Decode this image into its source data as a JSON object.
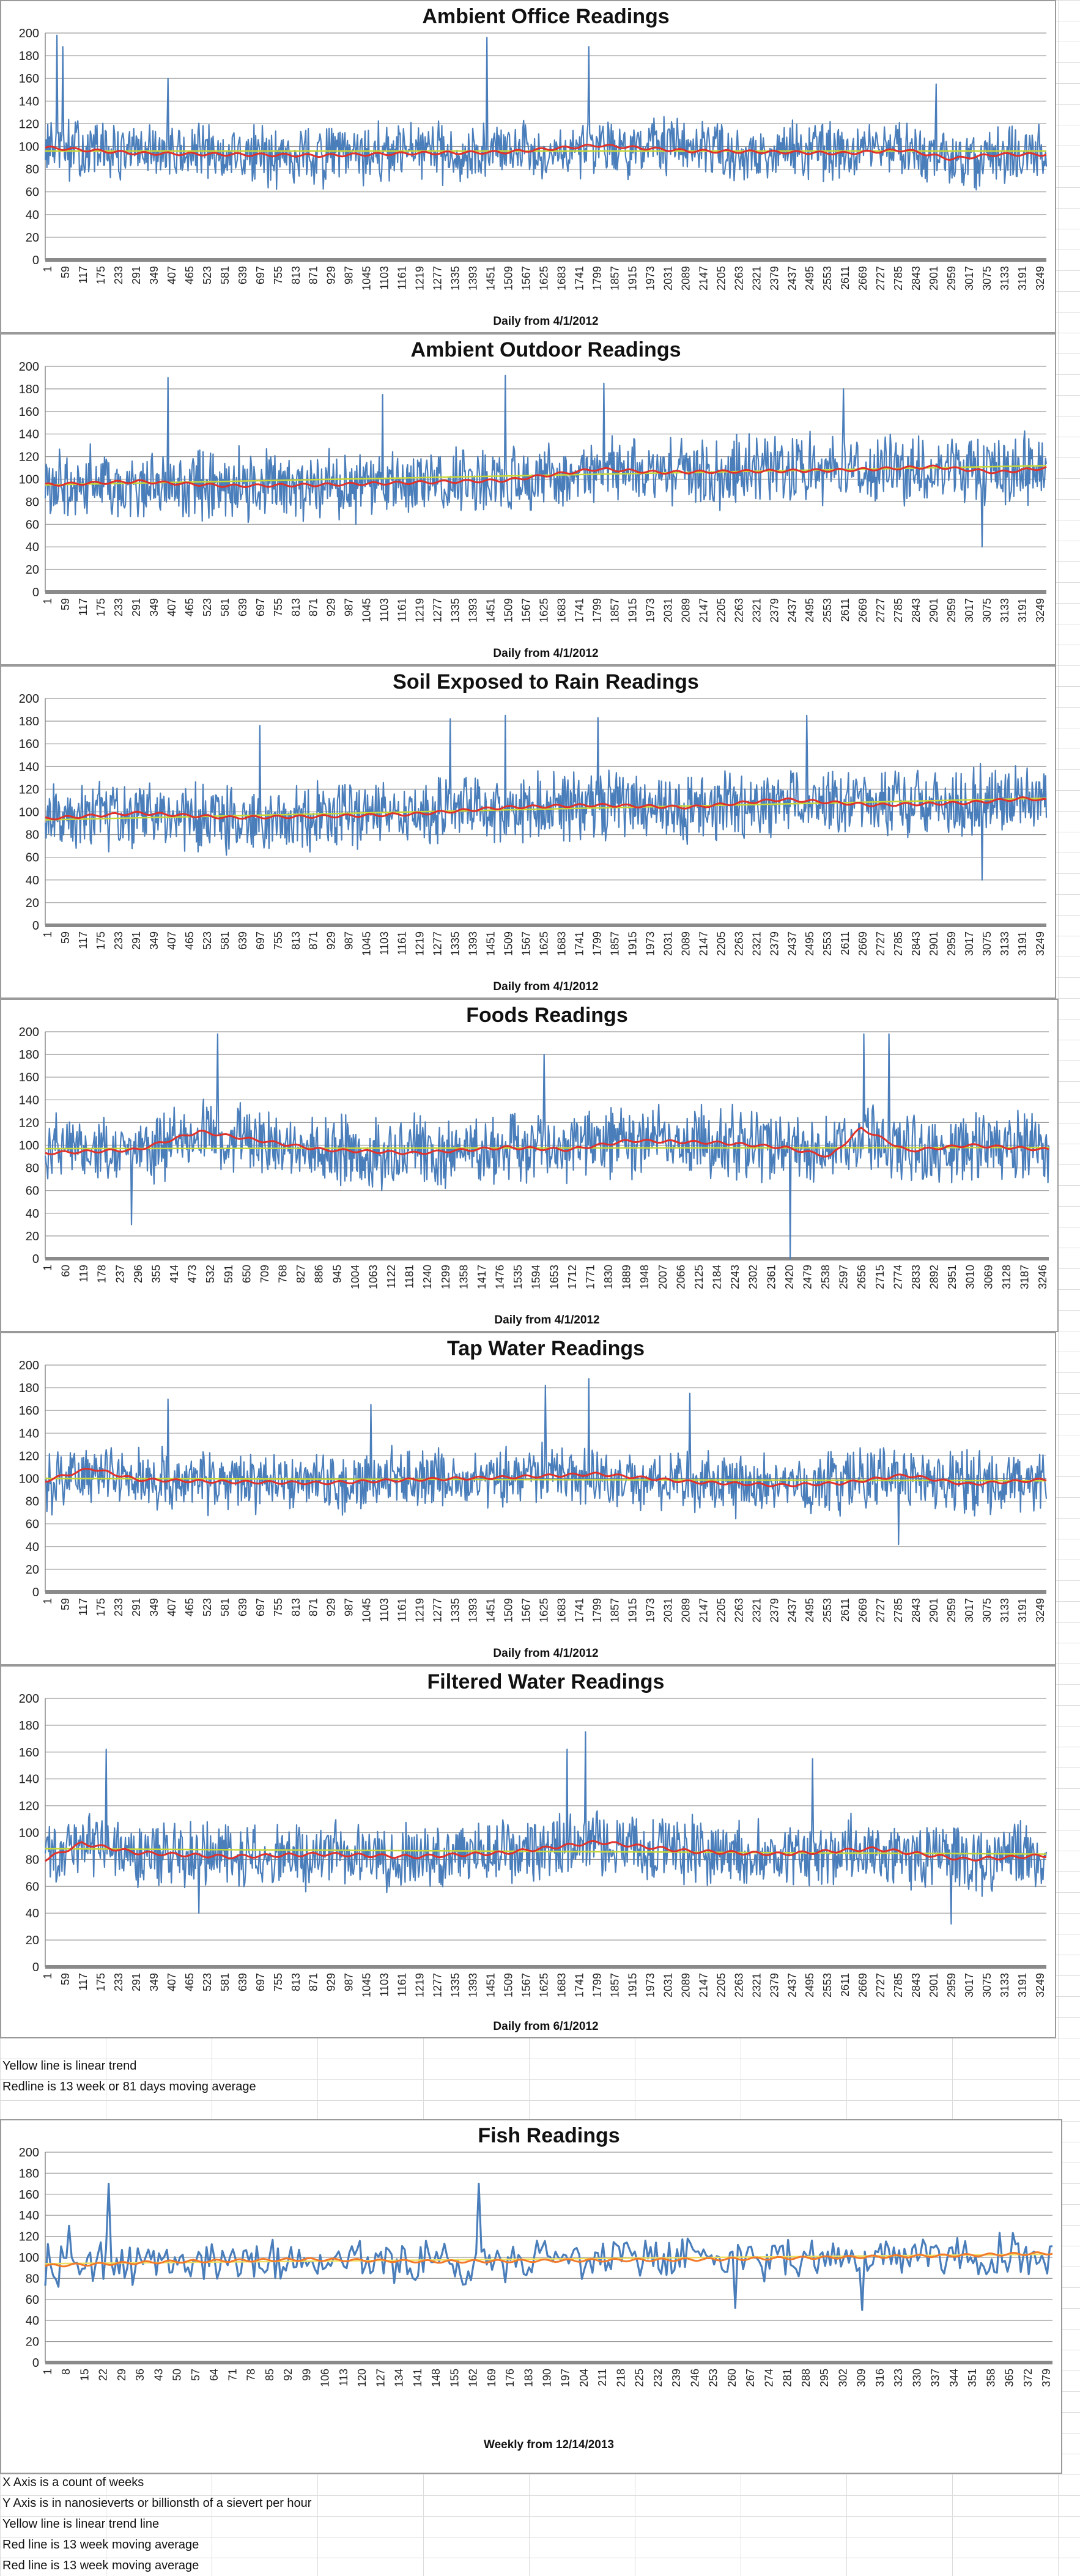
{
  "chart_data": [
    {
      "type": "line",
      "title": "Ambient Office Readings",
      "xlabel": "Daily from 4/1/2012",
      "ylabel": "",
      "ylim": [
        0,
        200
      ],
      "ytick_step": 20,
      "xtick_labels": [
        "1",
        "59",
        "117",
        "175",
        "233",
        "291",
        "349",
        "407",
        "465",
        "523",
        "581",
        "639",
        "697",
        "755",
        "813",
        "871",
        "929",
        "987",
        "1045",
        "1103",
        "1161",
        "1219",
        "1277",
        "1335",
        "1393",
        "1451",
        "1509",
        "1567",
        "1625",
        "1683",
        "1741",
        "1799",
        "1857",
        "1915",
        "1973",
        "2031",
        "2089",
        "2147",
        "2205",
        "2263",
        "2321",
        "2379",
        "2437",
        "2495",
        "2553",
        "2611",
        "2669",
        "2727",
        "2785",
        "2843",
        "2901",
        "2959",
        "3017",
        "3075",
        "3133",
        "3191",
        "3249"
      ],
      "x_max": 3260,
      "mean": 94,
      "amplitude": 24,
      "trend": [
        96,
        96
      ],
      "moving_average": [
        [
          1,
          99
        ],
        [
          300,
          94
        ],
        [
          600,
          93
        ],
        [
          900,
          92
        ],
        [
          1200,
          94
        ],
        [
          1500,
          95
        ],
        [
          1800,
          101
        ],
        [
          2100,
          96
        ],
        [
          2400,
          95
        ],
        [
          2600,
          94
        ],
        [
          2800,
          97
        ],
        [
          2950,
          89
        ],
        [
          3100,
          93
        ],
        [
          3260,
          93
        ]
      ],
      "spikes": [
        [
          40,
          198
        ],
        [
          58,
          188
        ],
        [
          1440,
          196
        ],
        [
          1770,
          188
        ],
        [
          400,
          160
        ],
        [
          2900,
          155
        ]
      ],
      "series": [
        {
          "name": "readings",
          "color": "#4a7ebb"
        },
        {
          "name": "13 week moving average",
          "color": "#e0312b"
        },
        {
          "name": "linear trend",
          "color": "#c8d838"
        }
      ]
    },
    {
      "type": "line",
      "title": "Ambient Outdoor Readings",
      "xlabel": "Daily from 4/1/2012",
      "ylabel": "",
      "ylim": [
        0,
        200
      ],
      "ytick_step": 20,
      "xtick_labels": [
        "1",
        "59",
        "117",
        "175",
        "233",
        "291",
        "349",
        "407",
        "465",
        "523",
        "581",
        "639",
        "697",
        "755",
        "813",
        "871",
        "929",
        "987",
        "1045",
        "1103",
        "1161",
        "1219",
        "1277",
        "1335",
        "1393",
        "1451",
        "1509",
        "1567",
        "1625",
        "1683",
        "1741",
        "1799",
        "1857",
        "1915",
        "1973",
        "2031",
        "2089",
        "2147",
        "2205",
        "2263",
        "2321",
        "2379",
        "2437",
        "2495",
        "2553",
        "2611",
        "2669",
        "2727",
        "2785",
        "2843",
        "2901",
        "2959",
        "3017",
        "3075",
        "3133",
        "3191",
        "3249"
      ],
      "x_max": 3260,
      "mean": 100,
      "amplitude": 28,
      "trend": [
        95,
        112
      ],
      "moving_average": [
        [
          1,
          95
        ],
        [
          300,
          98
        ],
        [
          600,
          94
        ],
        [
          900,
          95
        ],
        [
          1200,
          97
        ],
        [
          1500,
          99
        ],
        [
          1800,
          109
        ],
        [
          2000,
          106
        ],
        [
          2300,
          107
        ],
        [
          2600,
          108
        ],
        [
          2900,
          111
        ],
        [
          3100,
          106
        ],
        [
          3260,
          110
        ]
      ],
      "spikes": [
        [
          400,
          190
        ],
        [
          1500,
          192
        ],
        [
          1820,
          185
        ],
        [
          1100,
          175
        ],
        [
          2600,
          180
        ],
        [
          3050,
          40
        ]
      ],
      "series": [
        {
          "name": "readings",
          "color": "#4a7ebb"
        },
        {
          "name": "13 week moving average",
          "color": "#e0312b"
        },
        {
          "name": "linear trend",
          "color": "#c8d838"
        }
      ]
    },
    {
      "type": "line",
      "title": "Soil Exposed to Rain Readings",
      "xlabel": "Daily from 4/1/2012",
      "ylabel": "",
      "ylim": [
        0,
        200
      ],
      "ytick_step": 20,
      "xtick_labels": [
        "1",
        "59",
        "117",
        "175",
        "233",
        "291",
        "349",
        "407",
        "465",
        "523",
        "581",
        "639",
        "697",
        "755",
        "813",
        "871",
        "929",
        "987",
        "1045",
        "1103",
        "1161",
        "1219",
        "1277",
        "1335",
        "1393",
        "1451",
        "1509",
        "1567",
        "1625",
        "1683",
        "1741",
        "1799",
        "1857",
        "1915",
        "1973",
        "2031",
        "2089",
        "2147",
        "2205",
        "2263",
        "2321",
        "2379",
        "2437",
        "2495",
        "2553",
        "2611",
        "2669",
        "2727",
        "2785",
        "2843",
        "2901",
        "2959",
        "3017",
        "3075",
        "3133",
        "3191",
        "3249"
      ],
      "x_max": 3260,
      "mean": 100,
      "amplitude": 27,
      "trend": [
        93,
        112
      ],
      "moving_average": [
        [
          1,
          94
        ],
        [
          300,
          99
        ],
        [
          600,
          95
        ],
        [
          900,
          96
        ],
        [
          1200,
          98
        ],
        [
          1500,
          104
        ],
        [
          1800,
          106
        ],
        [
          2100,
          104
        ],
        [
          2400,
          111
        ],
        [
          2700,
          106
        ],
        [
          3000,
          108
        ],
        [
          3200,
          112
        ],
        [
          3260,
          110
        ]
      ],
      "spikes": [
        [
          1500,
          185
        ],
        [
          1800,
          183
        ],
        [
          1320,
          182
        ],
        [
          2480,
          185
        ],
        [
          700,
          176
        ],
        [
          3050,
          40
        ]
      ],
      "series": [
        {
          "name": "readings",
          "color": "#4a7ebb"
        },
        {
          "name": "13 week moving average",
          "color": "#e0312b"
        },
        {
          "name": "linear trend",
          "color": "#c8d838"
        }
      ]
    },
    {
      "type": "line",
      "title": "Foods Readings",
      "xlabel": "Daily from 4/1/2012",
      "ylabel": "",
      "ylim": [
        0,
        200
      ],
      "ytick_step": 20,
      "xtick_labels": [
        "1",
        "60",
        "119",
        "178",
        "237",
        "296",
        "355",
        "414",
        "473",
        "532",
        "591",
        "650",
        "709",
        "768",
        "827",
        "886",
        "945",
        "1004",
        "1063",
        "1122",
        "1181",
        "1240",
        "1299",
        "1358",
        "1417",
        "1476",
        "1535",
        "1594",
        "1653",
        "1712",
        "1771",
        "1830",
        "1889",
        "1948",
        "2007",
        "2066",
        "2125",
        "2184",
        "2243",
        "2302",
        "2361",
        "2420",
        "2479",
        "2538",
        "2597",
        "2656",
        "2715",
        "2774",
        "2833",
        "2892",
        "2951",
        "3010",
        "3069",
        "3128",
        "3187",
        "3246"
      ],
      "x_max": 3260,
      "mean": 98,
      "amplitude": 28,
      "trend": [
        97,
        98
      ],
      "moving_average": [
        [
          1,
          93
        ],
        [
          300,
          96
        ],
        [
          500,
          112
        ],
        [
          700,
          104
        ],
        [
          900,
          96
        ],
        [
          1200,
          93
        ],
        [
          1500,
          98
        ],
        [
          1700,
          96
        ],
        [
          1900,
          104
        ],
        [
          2200,
          102
        ],
        [
          2400,
          98
        ],
        [
          2550,
          90
        ],
        [
          2650,
          115
        ],
        [
          2800,
          95
        ],
        [
          3000,
          100
        ],
        [
          3260,
          96
        ]
      ],
      "spikes": [
        [
          560,
          198
        ],
        [
          2420,
          0
        ],
        [
          2660,
          198
        ],
        [
          2740,
          198
        ],
        [
          1620,
          180
        ],
        [
          280,
          30
        ]
      ],
      "series": [
        {
          "name": "readings",
          "color": "#4a7ebb"
        },
        {
          "name": "13 week moving average",
          "color": "#e0312b"
        },
        {
          "name": "linear trend",
          "color": "#c8d838"
        }
      ]
    },
    {
      "type": "line",
      "title": "Tap Water Readings",
      "xlabel": "Daily from 4/1/2012",
      "ylabel": "",
      "ylim": [
        0,
        200
      ],
      "ytick_step": 20,
      "xtick_labels": [
        "1",
        "59",
        "117",
        "175",
        "233",
        "291",
        "349",
        "407",
        "465",
        "523",
        "581",
        "639",
        "697",
        "755",
        "813",
        "871",
        "929",
        "987",
        "1045",
        "1103",
        "1161",
        "1219",
        "1277",
        "1335",
        "1393",
        "1451",
        "1509",
        "1567",
        "1625",
        "1683",
        "1741",
        "1799",
        "1857",
        "1915",
        "1973",
        "2031",
        "2089",
        "2147",
        "2205",
        "2263",
        "2321",
        "2379",
        "2437",
        "2495",
        "2553",
        "2611",
        "2669",
        "2727",
        "2785",
        "2843",
        "2901",
        "2959",
        "3017",
        "3075",
        "3133",
        "3191",
        "3249"
      ],
      "x_max": 3260,
      "mean": 98,
      "amplitude": 25,
      "trend": [
        100,
        98
      ],
      "moving_average": [
        [
          1,
          98
        ],
        [
          150,
          109
        ],
        [
          300,
          99
        ],
        [
          600,
          97
        ],
        [
          900,
          96
        ],
        [
          1200,
          99
        ],
        [
          1500,
          101
        ],
        [
          1800,
          104
        ],
        [
          2100,
          97
        ],
        [
          2400,
          94
        ],
        [
          2600,
          96
        ],
        [
          2800,
          103
        ],
        [
          3000,
          95
        ],
        [
          3260,
          99
        ]
      ],
      "spikes": [
        [
          1770,
          188
        ],
        [
          1630,
          182
        ],
        [
          2100,
          175
        ],
        [
          400,
          170
        ],
        [
          1060,
          165
        ],
        [
          2780,
          42
        ]
      ],
      "series": [
        {
          "name": "readings",
          "color": "#4a7ebb"
        },
        {
          "name": "13 week moving average",
          "color": "#e0312b"
        },
        {
          "name": "linear trend",
          "color": "#c8d838"
        }
      ]
    },
    {
      "type": "line",
      "title": "Filtered Water Readings",
      "xlabel": "Daily from 6/1/2012",
      "ylabel": "",
      "ylim": [
        0,
        200
      ],
      "ytick_step": 20,
      "xtick_labels": [
        "1",
        "59",
        "117",
        "175",
        "233",
        "291",
        "349",
        "407",
        "465",
        "523",
        "581",
        "639",
        "697",
        "755",
        "813",
        "871",
        "929",
        "987",
        "1045",
        "1103",
        "1161",
        "1219",
        "1277",
        "1335",
        "1393",
        "1451",
        "1509",
        "1567",
        "1625",
        "1683",
        "1741",
        "1799",
        "1857",
        "1915",
        "1973",
        "2031",
        "2089",
        "2147",
        "2205",
        "2263",
        "2321",
        "2379",
        "2437",
        "2495",
        "2553",
        "2611",
        "2669",
        "2727",
        "2785",
        "2843",
        "2901",
        "2959",
        "3017",
        "3075",
        "3133",
        "3191",
        "3249"
      ],
      "x_max": 3260,
      "mean": 85,
      "amplitude": 22,
      "trend": [
        88,
        84
      ],
      "moving_average": [
        [
          1,
          80
        ],
        [
          120,
          92
        ],
        [
          300,
          85
        ],
        [
          600,
          82
        ],
        [
          900,
          84
        ],
        [
          1200,
          82
        ],
        [
          1500,
          85
        ],
        [
          1800,
          93
        ],
        [
          2100,
          86
        ],
        [
          2400,
          84
        ],
        [
          2700,
          88
        ],
        [
          3000,
          80
        ],
        [
          3260,
          83
        ]
      ],
      "spikes": [
        [
          200,
          162
        ],
        [
          1760,
          175
        ],
        [
          1700,
          162
        ],
        [
          2500,
          155
        ],
        [
          2950,
          32
        ],
        [
          500,
          40
        ]
      ],
      "series": [
        {
          "name": "readings",
          "color": "#4a7ebb"
        },
        {
          "name": "13 week moving average",
          "color": "#e0312b"
        },
        {
          "name": "linear trend",
          "color": "#c8d838"
        }
      ]
    },
    {
      "type": "line",
      "title": "Fish Readings",
      "xlabel": "Weekly from 12/14/2013",
      "ylabel": "",
      "ylim": [
        0,
        200
      ],
      "ytick_step": 20,
      "xtick_labels": [
        "1",
        "8",
        "15",
        "22",
        "29",
        "36",
        "43",
        "50",
        "57",
        "64",
        "71",
        "78",
        "85",
        "92",
        "99",
        "106",
        "113",
        "120",
        "127",
        "134",
        "141",
        "148",
        "155",
        "162",
        "169",
        "176",
        "183",
        "190",
        "197",
        "204",
        "211",
        "218",
        "225",
        "232",
        "239",
        "246",
        "253",
        "260",
        "267",
        "274",
        "281",
        "288",
        "295",
        "302",
        "309",
        "316",
        "323",
        "330",
        "337",
        "344",
        "351",
        "358",
        "365",
        "372",
        "379"
      ],
      "x_max": 382,
      "mean": 96,
      "amplitude": 14,
      "trend": [
        94,
        103
      ],
      "moving_average": [
        [
          1,
          92
        ],
        [
          50,
          96
        ],
        [
          100,
          98
        ],
        [
          150,
          96
        ],
        [
          200,
          97
        ],
        [
          250,
          98
        ],
        [
          300,
          100
        ],
        [
          350,
          102
        ],
        [
          382,
          104
        ]
      ],
      "spikes": [
        [
          25,
          170
        ],
        [
          165,
          170
        ],
        [
          262,
          52
        ],
        [
          310,
          50
        ],
        [
          1,
          73
        ],
        [
          10,
          130
        ]
      ],
      "series": [
        {
          "name": "readings",
          "color": "#4a7ebb"
        },
        {
          "name": "13 week moving average",
          "color": "#f27a2a"
        },
        {
          "name": "linear trend",
          "color": "#f0e060"
        }
      ]
    }
  ],
  "notes_daily": [
    "Yellow line is linear trend",
    "Redline is 13 week or 81 days moving average"
  ],
  "notes_fish": [
    "X Axis is a count of weeks",
    "Y Axis is in nanosieverts or billionsth of a sievert per hour",
    "Yellow line is linear trend line",
    "Red line is 13 week moving average",
    "Red line is 13 week moving average"
  ]
}
